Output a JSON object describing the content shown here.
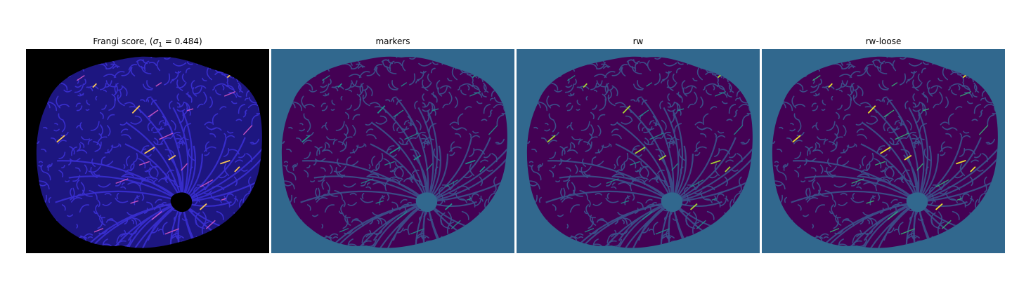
{
  "figure": {
    "panels": [
      {
        "title_prefix": "Frangi score, (",
        "title_symbol": "σ",
        "title_subscript": "1",
        "title_suffix": " = 0.484)",
        "background_color": "#000000",
        "tissue_color": "#1d1680",
        "texture_color": "#3a2fd0",
        "highlight_color": "#e05cc8",
        "hot_color": "#ffd24a"
      },
      {
        "title": "markers",
        "background_color": "#31688e",
        "tissue_color": "#440154",
        "texture_color": "#3b528b",
        "highlight_color": "#21918c",
        "hot_color": "#21918c"
      },
      {
        "title": "rw",
        "background_color": "#31688e",
        "tissue_color": "#440154",
        "texture_color": "#3b528b",
        "highlight_color": "#21918c",
        "hot_color": "#b5de2b"
      },
      {
        "title": "rw-loose",
        "background_color": "#31688e",
        "tissue_color": "#440154",
        "texture_color": "#3b528b",
        "highlight_color": "#35b779",
        "hot_color": "#fde725"
      }
    ]
  }
}
